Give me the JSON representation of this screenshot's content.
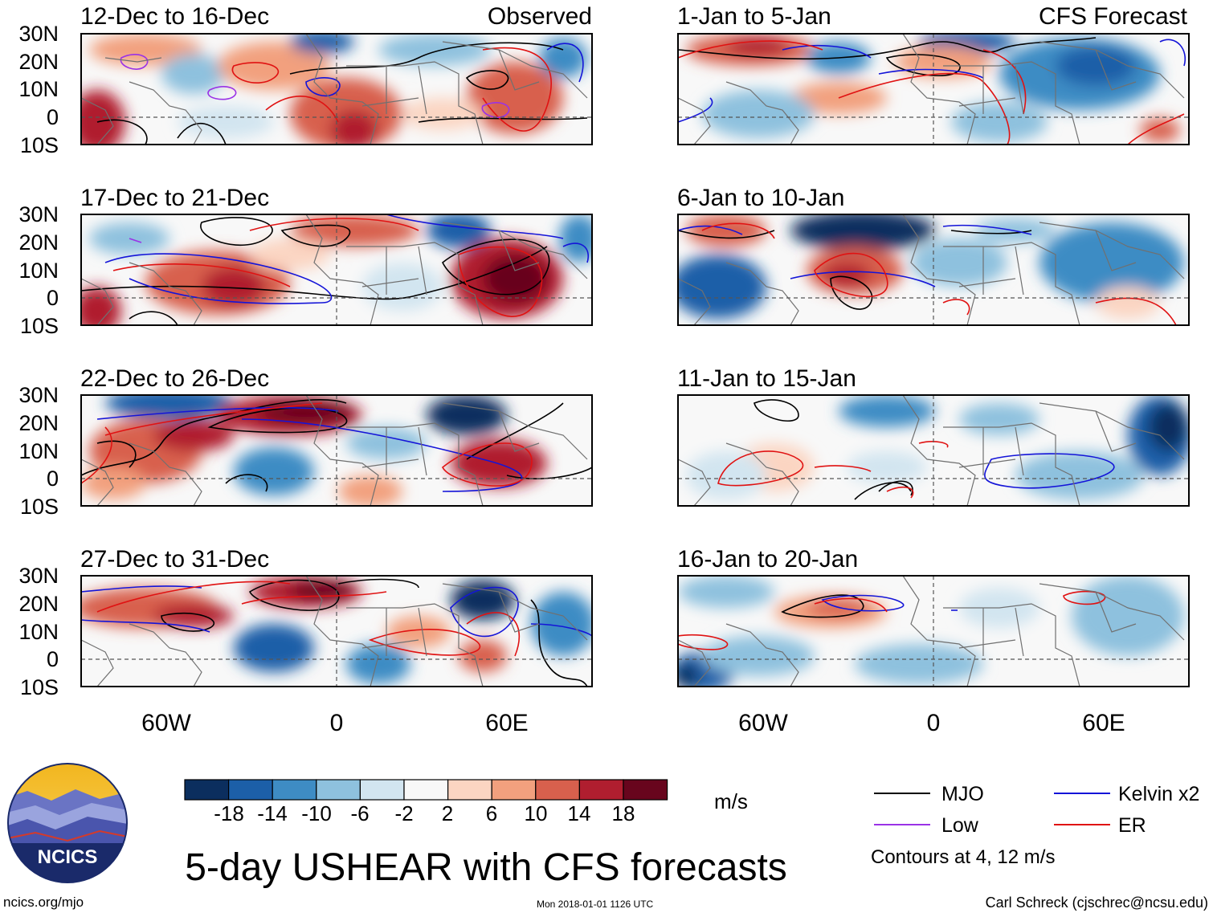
{
  "title": "5-day USHEAR with CFS forecasts",
  "observed_label": "Observed",
  "forecast_label": "CFS Forecast",
  "observed_periods": [
    "12-Dec to 16-Dec",
    "17-Dec to 21-Dec",
    "22-Dec to 26-Dec",
    "27-Dec to 31-Dec"
  ],
  "forecast_periods": [
    "1-Jan to 5-Jan",
    "6-Jan to 10-Jan",
    "11-Jan to 15-Jan",
    "16-Jan to 20-Jan"
  ],
  "lat_labels": [
    "30N",
    "20N",
    "10N",
    "0",
    "10S"
  ],
  "lon_labels": [
    "60W",
    "0",
    "60E"
  ],
  "colorbar": {
    "ticks": [
      "-18",
      "-14",
      "-10",
      "-6",
      "-2",
      "2",
      "6",
      "10",
      "14",
      "18"
    ],
    "units": "m/s",
    "colors": [
      "#0b2e5e",
      "#1c5fa8",
      "#3e8cc4",
      "#8ec1de",
      "#d2e5f0",
      "#f8f8f8",
      "#fbd5c2",
      "#f2a07e",
      "#d8604d",
      "#b01e2f",
      "#68051d"
    ]
  },
  "legend": {
    "mjo": "MJO",
    "kelvin": "Kelvin x2",
    "low": "Low",
    "er": "ER",
    "note": "Contours at 4, 12 m/s",
    "colors": {
      "mjo": "#000000",
      "kelvin": "#1414d8",
      "low": "#9a32e6",
      "er": "#e01212"
    }
  },
  "logo_text": "NCICS",
  "footer": {
    "url": "ncics.org/mjo",
    "timestamp": "Mon 2018-01-01 1126 UTC",
    "credit": "Carl Schreck (cjschrec@ncsu.edu)"
  }
}
